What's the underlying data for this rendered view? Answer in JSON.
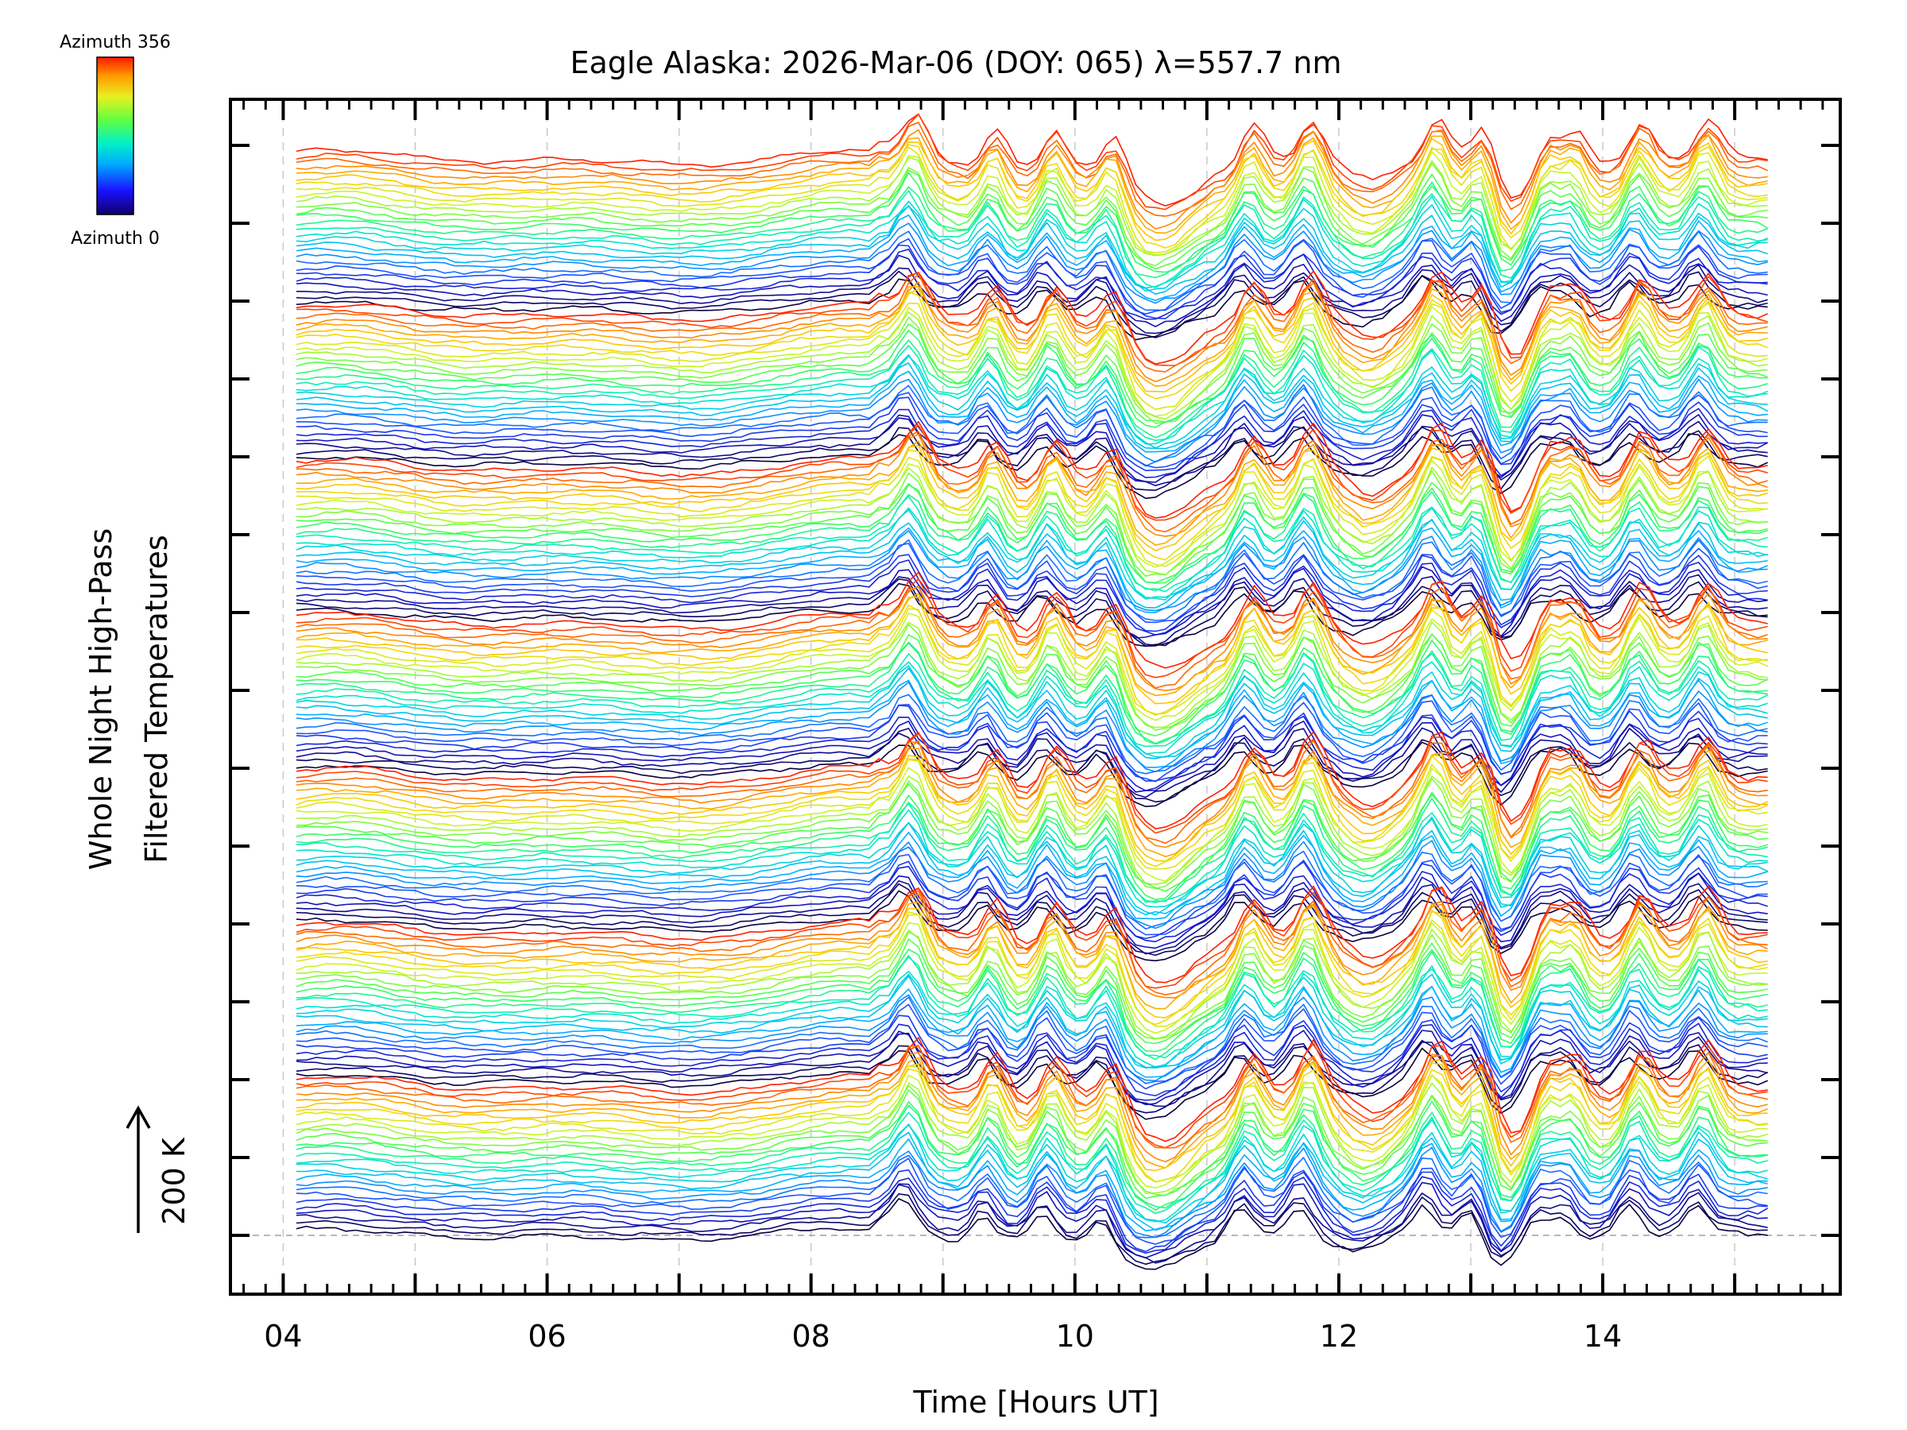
{
  "chart_data": {
    "type": "line",
    "title": "Eagle Alaska: 2026-Mar-06 (DOY: 065) λ=557.7 nm",
    "xlabel": "Time [Hours UT]",
    "ylabel_line1": "Whole Night High-Pass",
    "ylabel_line2": "Filtered Temperatures",
    "scale_label": "200 K",
    "colorbar": {
      "top_label": "Azimuth 356",
      "bottom_label": "Azimuth 0",
      "min": 0,
      "max": 356
    },
    "xlim": [
      3.6,
      15.8
    ],
    "x_tick_labels": [
      "04",
      "06",
      "08",
      "10",
      "12",
      "14"
    ],
    "x_tick_values": [
      4,
      6,
      8,
      10,
      12,
      14
    ],
    "x_range_data": [
      4.1,
      15.25
    ],
    "grid": "dashed vertical at each hour",
    "series_description": "Stacked traces, one per azimuth 0–356°, vertically offset; colour encodes azimuth",
    "n_groups": 7,
    "traces_per_group": 28,
    "event_peaks_hours": [
      8.75,
      9.35,
      9.8,
      10.25,
      11.3,
      11.75,
      12.7,
      13.05,
      13.55,
      13.75,
      14.25,
      14.75
    ]
  }
}
